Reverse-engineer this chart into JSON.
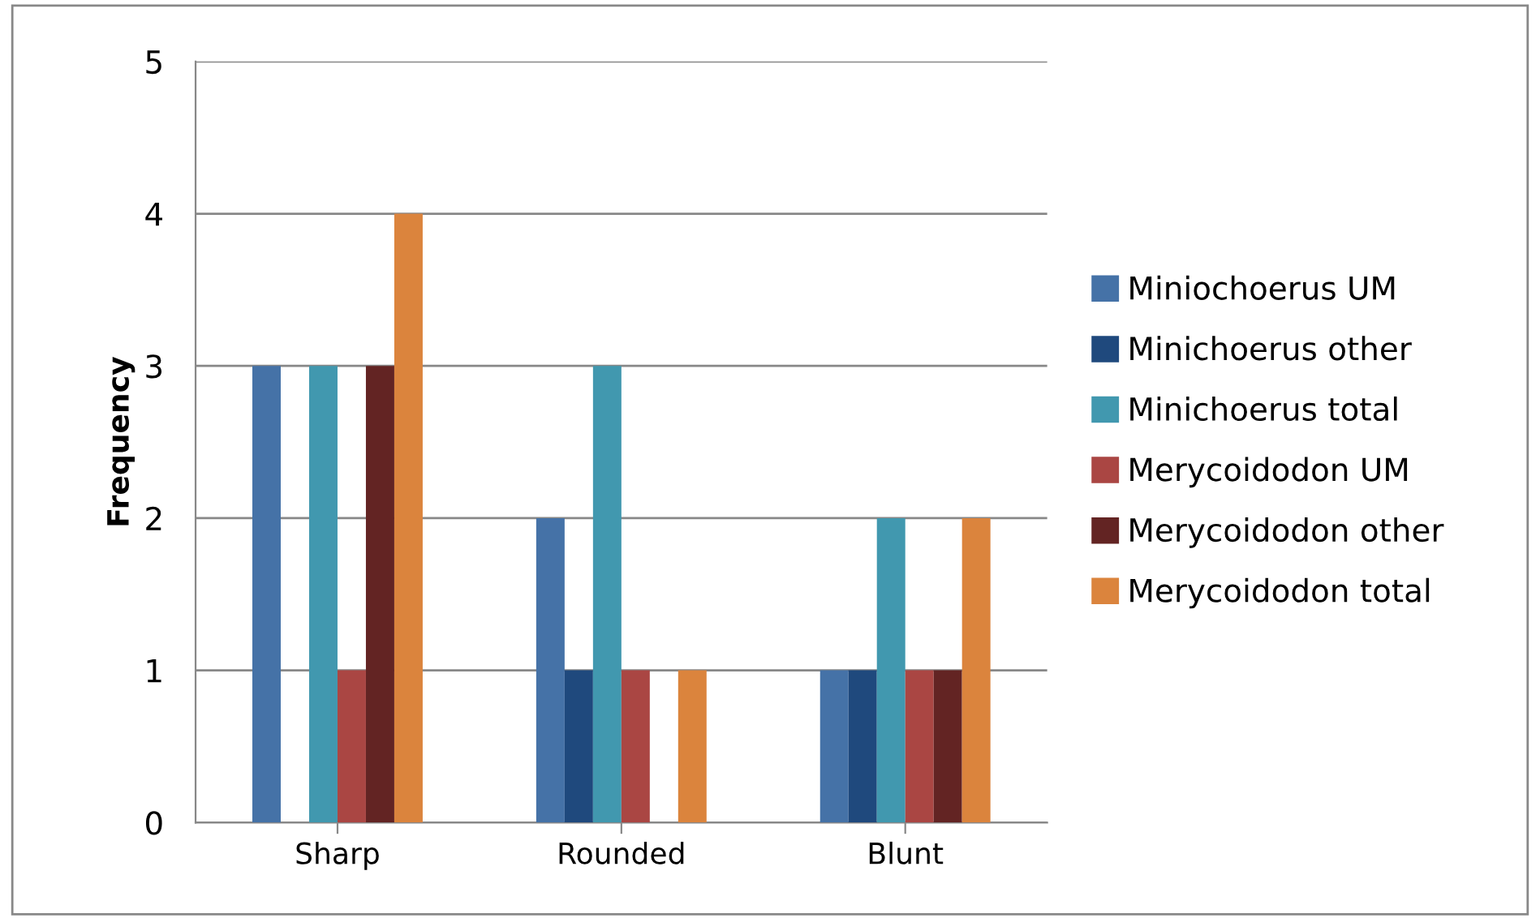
{
  "chart_data": {
    "type": "bar",
    "ylabel": "Frequency",
    "categories": [
      "Sharp",
      "Rounded",
      "Blunt"
    ],
    "series": [
      {
        "name": "Miniochoerus UM",
        "color": "#4572a7",
        "values": [
          3,
          2,
          1
        ]
      },
      {
        "name": "Minichoerus other",
        "color": "#1f497d",
        "values": [
          0,
          1,
          1
        ]
      },
      {
        "name": "Minichoerus total",
        "color": "#4198af",
        "values": [
          3,
          3,
          2
        ]
      },
      {
        "name": "Merycoidodon UM",
        "color": "#aa4643",
        "values": [
          1,
          1,
          1
        ]
      },
      {
        "name": "Merycoidodon other",
        "color": "#632423",
        "values": [
          3,
          0,
          1
        ]
      },
      {
        "name": "Merycoidodon total",
        "color": "#db843d",
        "values": [
          4,
          1,
          2
        ]
      }
    ],
    "ylim": [
      0,
      5
    ],
    "yticks": [
      0,
      1,
      2,
      3,
      4,
      5
    ],
    "grid": "y",
    "legend": "right"
  }
}
